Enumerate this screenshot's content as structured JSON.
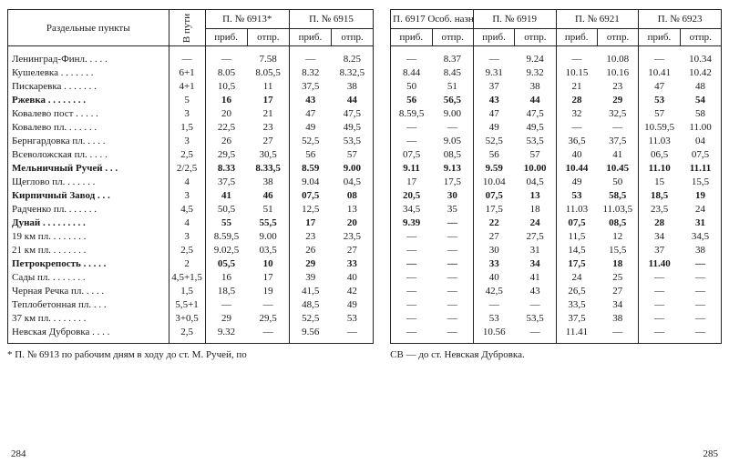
{
  "headers": {
    "stations": "Раздельные\nпункты",
    "dist": "В пути",
    "arr": "приб.",
    "dep": "отпр.",
    "trains_left": [
      "П. № 6913*",
      "П. № 6915"
    ],
    "trains_right": [
      "П. 6917\nОсоб. назн.",
      "П. № 6919",
      "П. № 6921",
      "П. № 6923"
    ]
  },
  "left_footnote": "* П. № 6913 по рабочим дням в ходу до ст. М. Ручей, по",
  "right_footnote": "СВ — до ст. Невская Дубровка.",
  "left_pagenum": "284",
  "right_pagenum": "285",
  "rows": [
    {
      "bold": false,
      "station": "Ленинград-Финл. . . . .",
      "dist": "—",
      "l": [
        [
          "—",
          "7.58"
        ],
        [
          "—",
          "8.25"
        ]
      ],
      "r": [
        [
          "—",
          "8.37"
        ],
        [
          "—",
          "9.24"
        ],
        [
          "—",
          "10.08"
        ],
        [
          "—",
          "10.34"
        ]
      ]
    },
    {
      "bold": false,
      "station": "Кушелевка  . . . . . . .",
      "dist": "6+1",
      "l": [
        [
          "8.05",
          "8.05,5"
        ],
        [
          "8.32",
          "8.32,5"
        ]
      ],
      "r": [
        [
          "8.44",
          "8.45"
        ],
        [
          "9.31",
          "9.32"
        ],
        [
          "10.15",
          "10.16"
        ],
        [
          "10.41",
          "10.42"
        ]
      ]
    },
    {
      "bold": false,
      "station": "Пискаревка . . . . . . .",
      "dist": "4+1",
      "l": [
        [
          "10,5",
          "11"
        ],
        [
          "37,5",
          "38"
        ]
      ],
      "r": [
        [
          "50",
          "51"
        ],
        [
          "37",
          "38"
        ],
        [
          "21",
          "23"
        ],
        [
          "47",
          "48"
        ]
      ]
    },
    {
      "bold": true,
      "station": "Ржевка  . . . . . . . .",
      "dist": "5",
      "l": [
        [
          "16",
          "17"
        ],
        [
          "43",
          "44"
        ]
      ],
      "r": [
        [
          "56",
          "56,5"
        ],
        [
          "43",
          "44"
        ],
        [
          "28",
          "29"
        ],
        [
          "53",
          "54"
        ]
      ]
    },
    {
      "bold": false,
      "station": "Ковалево пост  . . . . .",
      "dist": "3",
      "l": [
        [
          "20",
          "21"
        ],
        [
          "47",
          "47,5"
        ]
      ],
      "r": [
        [
          "8.59,5",
          "9.00"
        ],
        [
          "47",
          "47,5"
        ],
        [
          "32",
          "32,5"
        ],
        [
          "57",
          "58"
        ]
      ]
    },
    {
      "bold": false,
      "station": "Ковалево пл. . . . . . .",
      "dist": "1,5",
      "l": [
        [
          "22,5",
          "23"
        ],
        [
          "49",
          "49,5"
        ]
      ],
      "r": [
        [
          "—",
          "—"
        ],
        [
          "49",
          "49,5"
        ],
        [
          "—",
          "—"
        ],
        [
          "10.59,5",
          "11.00"
        ]
      ]
    },
    {
      "bold": false,
      "station": "Бернгардовка пл. . . . .",
      "dist": "3",
      "l": [
        [
          "26",
          "27"
        ],
        [
          "52,5",
          "53,5"
        ]
      ],
      "r": [
        [
          "—",
          "9.05"
        ],
        [
          "52,5",
          "53,5"
        ],
        [
          "36,5",
          "37,5"
        ],
        [
          "11.03",
          "04"
        ]
      ]
    },
    {
      "bold": false,
      "station": "Всеволожская пл. . . . .",
      "dist": "2,5",
      "l": [
        [
          "29,5",
          "30,5"
        ],
        [
          "56",
          "57"
        ]
      ],
      "r": [
        [
          "07,5",
          "08,5"
        ],
        [
          "56",
          "57"
        ],
        [
          "40",
          "41"
        ],
        [
          "06,5",
          "07,5"
        ]
      ]
    },
    {
      "bold": true,
      "station": "Мельничный Ручей  . . .",
      "dist": "2/2,5",
      "l": [
        [
          "8.33",
          "8.33,5"
        ],
        [
          "8.59",
          "9.00"
        ]
      ],
      "r": [
        [
          "9.11",
          "9.13"
        ],
        [
          "9.59",
          "10.00"
        ],
        [
          "10.44",
          "10.45"
        ],
        [
          "11.10",
          "11.11"
        ]
      ]
    },
    {
      "bold": false,
      "station": "Щеглово пл.  . . . . . .",
      "dist": "4",
      "l": [
        [
          "37,5",
          "38"
        ],
        [
          "9.04",
          "04,5"
        ]
      ],
      "r": [
        [
          "17",
          "17,5"
        ],
        [
          "10.04",
          "04,5"
        ],
        [
          "49",
          "50"
        ],
        [
          "15",
          "15,5"
        ]
      ]
    },
    {
      "bold": true,
      "station": "Кирпичный Завод  . . .",
      "dist": "3",
      "l": [
        [
          "41",
          "46"
        ],
        [
          "07,5",
          "08"
        ]
      ],
      "r": [
        [
          "20,5",
          "30"
        ],
        [
          "07,5",
          "13"
        ],
        [
          "53",
          "58,5"
        ],
        [
          "18,5",
          "19"
        ]
      ]
    },
    {
      "bold": false,
      "station": "Радченко пл. . . . . . .",
      "dist": "4,5",
      "l": [
        [
          "50,5",
          "51"
        ],
        [
          "12,5",
          "13"
        ]
      ],
      "r": [
        [
          "34,5",
          "35"
        ],
        [
          "17,5",
          "18"
        ],
        [
          "11.03",
          "11.03,5"
        ],
        [
          "23,5",
          "24"
        ]
      ]
    },
    {
      "bold": true,
      "station": "Дунай  . . . . . . . . .",
      "dist": "4",
      "l": [
        [
          "55",
          "55,5"
        ],
        [
          "17",
          "20"
        ]
      ],
      "r": [
        [
          "9.39",
          "—"
        ],
        [
          "22",
          "24"
        ],
        [
          "07,5",
          "08,5"
        ],
        [
          "28",
          "31"
        ]
      ]
    },
    {
      "bold": false,
      "station": "19 км пл.  . . . . . . .",
      "dist": "3",
      "l": [
        [
          "8.59,5",
          "9.00"
        ],
        [
          "23",
          "23,5"
        ]
      ],
      "r": [
        [
          "—",
          "—"
        ],
        [
          "27",
          "27,5"
        ],
        [
          "11,5",
          "12"
        ],
        [
          "34",
          "34,5"
        ]
      ]
    },
    {
      "bold": false,
      "station": "21 км пл.  . . . . . . .",
      "dist": "2,5",
      "l": [
        [
          "9.02,5",
          "03,5"
        ],
        [
          "26",
          "27"
        ]
      ],
      "r": [
        [
          "—",
          "—"
        ],
        [
          "30",
          "31"
        ],
        [
          "14,5",
          "15,5"
        ],
        [
          "37",
          "38"
        ]
      ]
    },
    {
      "bold": true,
      "station": "Петрокрепость  . . . . .",
      "dist": "2",
      "l": [
        [
          "05,5",
          "10"
        ],
        [
          "29",
          "33"
        ]
      ],
      "r": [
        [
          "—",
          "—"
        ],
        [
          "33",
          "34"
        ],
        [
          "17,5",
          "18"
        ],
        [
          "11.40",
          "—"
        ]
      ]
    },
    {
      "bold": false,
      "station": "Сады пл.  . . . . . . .",
      "dist": "4,5+1,5",
      "l": [
        [
          "16",
          "17"
        ],
        [
          "39",
          "40"
        ]
      ],
      "r": [
        [
          "—",
          "—"
        ],
        [
          "40",
          "41"
        ],
        [
          "24",
          "25"
        ],
        [
          "—",
          "—"
        ]
      ]
    },
    {
      "bold": false,
      "station": "Черная Речка пл. . . . .",
      "dist": "1,5",
      "l": [
        [
          "18,5",
          "19"
        ],
        [
          "41,5",
          "42"
        ]
      ],
      "r": [
        [
          "—",
          "—"
        ],
        [
          "42,5",
          "43"
        ],
        [
          "26,5",
          "27"
        ],
        [
          "—",
          "—"
        ]
      ]
    },
    {
      "bold": false,
      "station": "Теплобетонная пл.  . . .",
      "dist": "5,5+1",
      "l": [
        [
          "—",
          "—"
        ],
        [
          "48,5",
          "49"
        ]
      ],
      "r": [
        [
          "—",
          "—"
        ],
        [
          "—",
          "—"
        ],
        [
          "33,5",
          "34"
        ],
        [
          "—",
          "—"
        ]
      ]
    },
    {
      "bold": false,
      "station": "37 км пл.  . . . . . . .",
      "dist": "3+0,5",
      "l": [
        [
          "29",
          "29,5"
        ],
        [
          "52,5",
          "53"
        ]
      ],
      "r": [
        [
          "—",
          "—"
        ],
        [
          "53",
          "53,5"
        ],
        [
          "37,5",
          "38"
        ],
        [
          "—",
          "—"
        ]
      ]
    },
    {
      "bold": false,
      "station": "Невская Дубровка . . . .",
      "dist": "2,5",
      "l": [
        [
          "9.32",
          "—"
        ],
        [
          "9.56",
          "—"
        ]
      ],
      "r": [
        [
          "—",
          "—"
        ],
        [
          "10.56",
          "—"
        ],
        [
          "11.41",
          "—"
        ],
        [
          "—",
          "—"
        ]
      ]
    }
  ]
}
